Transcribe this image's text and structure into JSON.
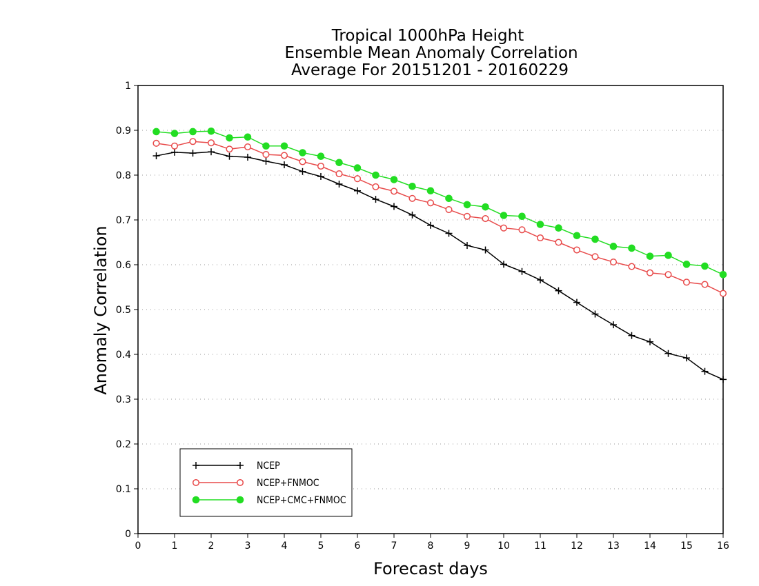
{
  "chart_data": {
    "type": "line",
    "title": [
      "Tropical 1000hPa Height",
      "Ensemble Mean Anomaly Correlation",
      "Average For 20151201 - 20160229"
    ],
    "xlabel": "Forecast days",
    "ylabel": "Anomaly Correlation",
    "xlim": [
      0,
      16
    ],
    "ylim": [
      0,
      1
    ],
    "xticks": [
      "0",
      "1",
      "2",
      "3",
      "4",
      "5",
      "6",
      "7",
      "8",
      "9",
      "10",
      "11",
      "12",
      "13",
      "14",
      "15",
      "16"
    ],
    "yticks": [
      "0",
      "0.1",
      "0.2",
      "0.3",
      "0.4",
      "0.5",
      "0.6",
      "0.7",
      "0.8",
      "0.9",
      "1"
    ],
    "grid": "horizontal-dotted",
    "legend_position": "bottom-left",
    "x": [
      0.5,
      1,
      1.5,
      2,
      2.5,
      3,
      3.5,
      4,
      4.5,
      5,
      5.5,
      6,
      6.5,
      7,
      7.5,
      8,
      8.5,
      9,
      9.5,
      10,
      10.5,
      11,
      11.5,
      12,
      12.5,
      13,
      13.5,
      14,
      14.5,
      15,
      15.5,
      16
    ],
    "series": [
      {
        "name": "NCEP",
        "color": "#000000",
        "marker": "plus",
        "values": [
          0.843,
          0.851,
          0.849,
          0.852,
          0.842,
          0.84,
          0.831,
          0.823,
          0.808,
          0.797,
          0.78,
          0.765,
          0.746,
          0.73,
          0.711,
          0.688,
          0.67,
          0.643,
          0.633,
          0.601,
          0.585,
          0.566,
          0.542,
          0.516,
          0.49,
          0.466,
          0.442,
          0.428,
          0.402,
          0.392,
          0.362,
          0.344
        ]
      },
      {
        "name": "NCEP+FNMOC",
        "color": "#e84a4a",
        "marker": "open-circle",
        "values": [
          0.871,
          0.865,
          0.875,
          0.872,
          0.858,
          0.863,
          0.846,
          0.844,
          0.83,
          0.82,
          0.803,
          0.792,
          0.774,
          0.764,
          0.748,
          0.738,
          0.723,
          0.708,
          0.703,
          0.682,
          0.678,
          0.66,
          0.65,
          0.633,
          0.618,
          0.606,
          0.596,
          0.582,
          0.578,
          0.561,
          0.556,
          0.536
        ]
      },
      {
        "name": "NCEP+CMC+FNMOC",
        "color": "#22dd22",
        "marker": "filled-circle",
        "values": [
          0.897,
          0.893,
          0.897,
          0.898,
          0.883,
          0.885,
          0.865,
          0.865,
          0.85,
          0.842,
          0.828,
          0.816,
          0.8,
          0.79,
          0.775,
          0.765,
          0.748,
          0.734,
          0.729,
          0.71,
          0.708,
          0.69,
          0.682,
          0.665,
          0.657,
          0.641,
          0.637,
          0.619,
          0.621,
          0.601,
          0.597,
          0.578
        ]
      }
    ]
  }
}
